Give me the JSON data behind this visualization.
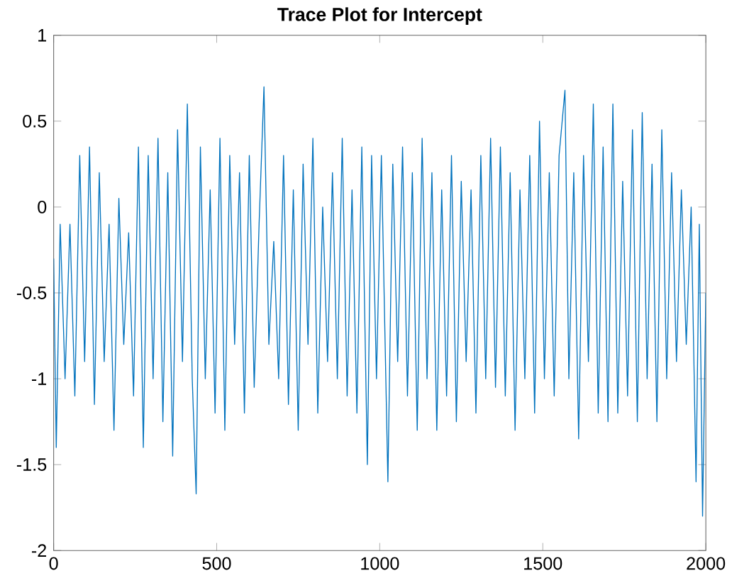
{
  "chart_data": {
    "type": "line",
    "title": "Trace Plot for Intercept",
    "xlim": [
      0,
      2000
    ],
    "ylim": [
      -2,
      1
    ],
    "xticks": [
      0,
      500,
      1000,
      1500,
      2000
    ],
    "yticks": [
      -2,
      -1.5,
      -1,
      -0.5,
      0,
      0.5,
      1
    ],
    "line_style": "solid",
    "series": [
      {
        "color": "#0072bd",
        "x": [
          0,
          8,
          20,
          35,
          50,
          65,
          80,
          95,
          110,
          125,
          140,
          155,
          170,
          185,
          200,
          215,
          230,
          245,
          260,
          275,
          290,
          305,
          320,
          335,
          350,
          365,
          380,
          395,
          410,
          425,
          437,
          450,
          465,
          480,
          495,
          510,
          525,
          540,
          555,
          570,
          585,
          600,
          615,
          630,
          645,
          660,
          675,
          690,
          705,
          720,
          735,
          750,
          765,
          780,
          795,
          810,
          825,
          840,
          855,
          870,
          885,
          900,
          915,
          930,
          945,
          962,
          975,
          990,
          1005,
          1025,
          1040,
          1055,
          1070,
          1085,
          1100,
          1115,
          1130,
          1145,
          1160,
          1175,
          1190,
          1205,
          1220,
          1235,
          1250,
          1265,
          1280,
          1295,
          1310,
          1325,
          1340,
          1355,
          1370,
          1385,
          1400,
          1415,
          1430,
          1445,
          1460,
          1475,
          1490,
          1505,
          1520,
          1535,
          1550,
          1568,
          1580,
          1595,
          1610,
          1625,
          1640,
          1655,
          1670,
          1685,
          1700,
          1715,
          1730,
          1745,
          1760,
          1775,
          1790,
          1805,
          1820,
          1835,
          1850,
          1865,
          1880,
          1895,
          1910,
          1925,
          1940,
          1955,
          1970,
          1980,
          1990,
          2000
        ],
        "values": [
          -0.3,
          -1.4,
          -0.1,
          -1.0,
          -0.1,
          -1.1,
          0.3,
          -0.9,
          0.35,
          -1.15,
          0.2,
          -0.9,
          -0.1,
          -1.3,
          0.05,
          -0.8,
          -0.15,
          -1.1,
          0.35,
          -1.4,
          0.3,
          -1.0,
          0.4,
          -1.25,
          0.2,
          -1.45,
          0.45,
          -0.9,
          0.6,
          -1.0,
          -1.67,
          0.35,
          -1.0,
          0.1,
          -1.2,
          0.4,
          -1.3,
          0.3,
          -0.8,
          0.2,
          -1.2,
          0.3,
          -1.05,
          -0.1,
          0.7,
          -0.8,
          -0.2,
          -1.0,
          0.3,
          -1.15,
          0.1,
          -1.3,
          0.25,
          -0.8,
          0.4,
          -1.2,
          0.0,
          -0.9,
          0.2,
          -1.0,
          0.4,
          -1.1,
          0.1,
          -1.2,
          0.35,
          -1.5,
          0.3,
          -1.0,
          0.3,
          -1.6,
          0.25,
          -0.9,
          0.35,
          -1.1,
          0.2,
          -1.3,
          0.4,
          -1.0,
          0.2,
          -1.3,
          0.1,
          -1.1,
          0.3,
          -1.25,
          0.15,
          -0.9,
          0.1,
          -1.2,
          0.3,
          -1.0,
          0.4,
          -1.05,
          0.35,
          -1.1,
          0.2,
          -1.3,
          0.1,
          -1.0,
          0.3,
          -1.2,
          0.5,
          -1.0,
          0.2,
          -1.1,
          0.3,
          0.68,
          -1.0,
          0.2,
          -1.35,
          0.3,
          -0.9,
          0.6,
          -1.2,
          0.35,
          -1.25,
          0.6,
          -1.2,
          0.15,
          -1.1,
          0.45,
          -1.25,
          0.55,
          -1.0,
          0.25,
          -1.25,
          0.45,
          -1.0,
          0.2,
          -0.9,
          0.1,
          -0.8,
          0.0,
          -1.6,
          -0.1,
          -1.8,
          -0.5
        ]
      }
    ]
  }
}
